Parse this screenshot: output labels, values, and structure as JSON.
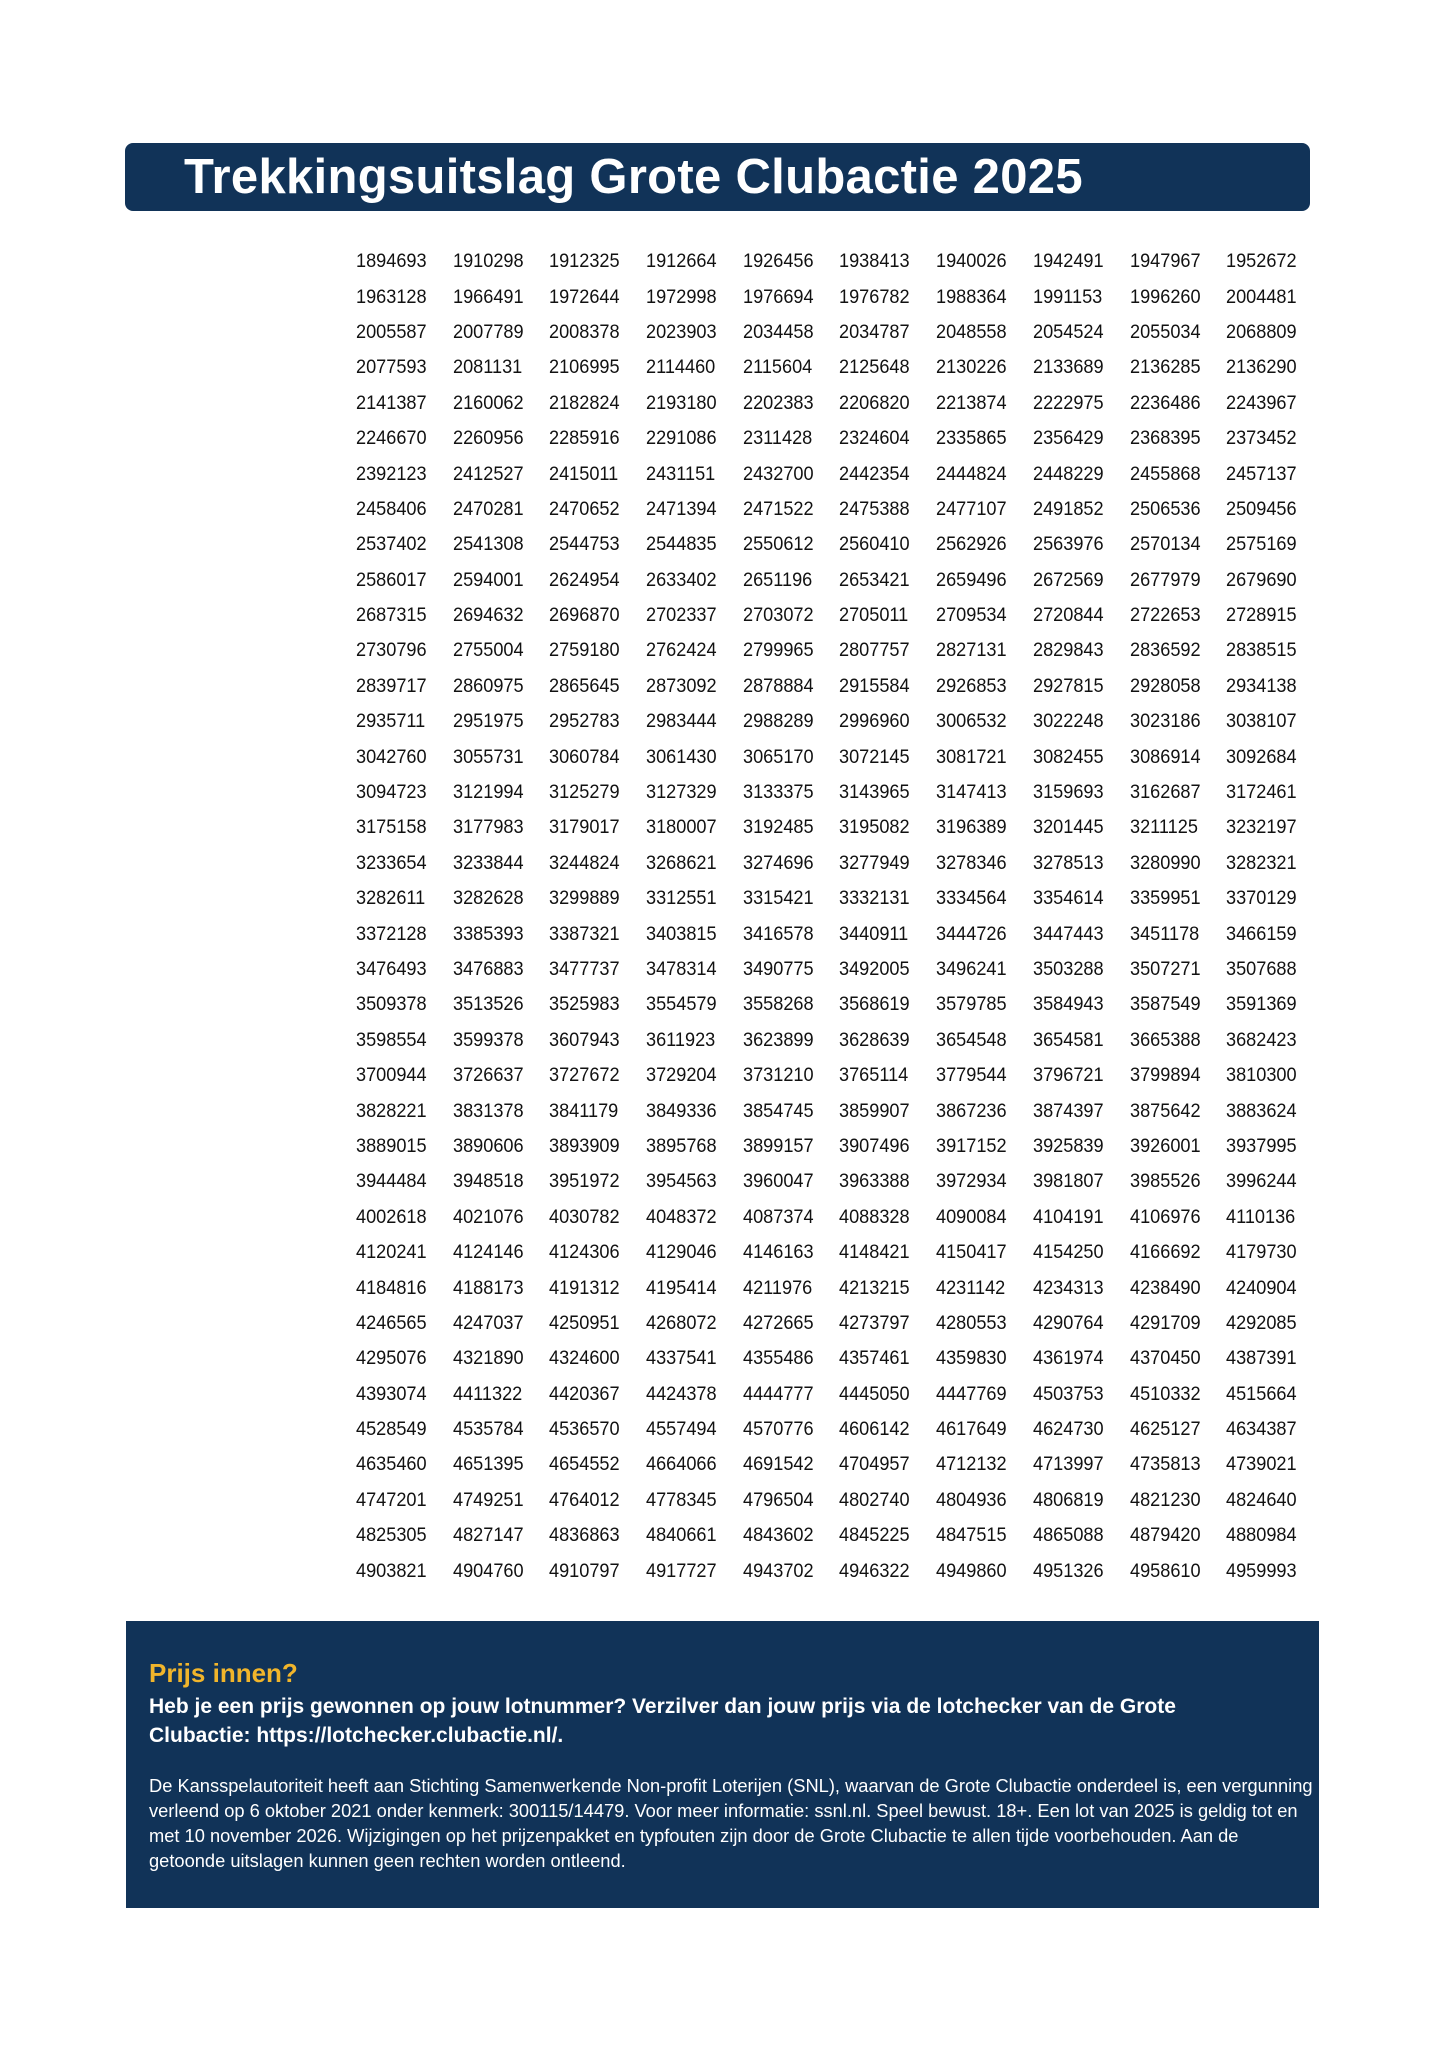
{
  "header": {
    "title": "Trekkingsuitslag Grote Clubactie 2025"
  },
  "colors": {
    "navy": "#113358",
    "accent_yellow": "#f1b52b",
    "text": "#111111"
  },
  "numbers": [
    [
      "1894693",
      "1910298",
      "1912325",
      "1912664",
      "1926456",
      "1938413",
      "1940026",
      "1942491",
      "1947967",
      "1952672"
    ],
    [
      "1963128",
      "1966491",
      "1972644",
      "1972998",
      "1976694",
      "1976782",
      "1988364",
      "1991153",
      "1996260",
      "2004481"
    ],
    [
      "2005587",
      "2007789",
      "2008378",
      "2023903",
      "2034458",
      "2034787",
      "2048558",
      "2054524",
      "2055034",
      "2068809"
    ],
    [
      "2077593",
      "2081131",
      "2106995",
      "2114460",
      "2115604",
      "2125648",
      "2130226",
      "2133689",
      "2136285",
      "2136290"
    ],
    [
      "2141387",
      "2160062",
      "2182824",
      "2193180",
      "2202383",
      "2206820",
      "2213874",
      "2222975",
      "2236486",
      "2243967"
    ],
    [
      "2246670",
      "2260956",
      "2285916",
      "2291086",
      "2311428",
      "2324604",
      "2335865",
      "2356429",
      "2368395",
      "2373452"
    ],
    [
      "2392123",
      "2412527",
      "2415011",
      "2431151",
      "2432700",
      "2442354",
      "2444824",
      "2448229",
      "2455868",
      "2457137"
    ],
    [
      "2458406",
      "2470281",
      "2470652",
      "2471394",
      "2471522",
      "2475388",
      "2477107",
      "2491852",
      "2506536",
      "2509456"
    ],
    [
      "2537402",
      "2541308",
      "2544753",
      "2544835",
      "2550612",
      "2560410",
      "2562926",
      "2563976",
      "2570134",
      "2575169"
    ],
    [
      "2586017",
      "2594001",
      "2624954",
      "2633402",
      "2651196",
      "2653421",
      "2659496",
      "2672569",
      "2677979",
      "2679690"
    ],
    [
      "2687315",
      "2694632",
      "2696870",
      "2702337",
      "2703072",
      "2705011",
      "2709534",
      "2720844",
      "2722653",
      "2728915"
    ],
    [
      "2730796",
      "2755004",
      "2759180",
      "2762424",
      "2799965",
      "2807757",
      "2827131",
      "2829843",
      "2836592",
      "2838515"
    ],
    [
      "2839717",
      "2860975",
      "2865645",
      "2873092",
      "2878884",
      "2915584",
      "2926853",
      "2927815",
      "2928058",
      "2934138"
    ],
    [
      "2935711",
      "2951975",
      "2952783",
      "2983444",
      "2988289",
      "2996960",
      "3006532",
      "3022248",
      "3023186",
      "3038107"
    ],
    [
      "3042760",
      "3055731",
      "3060784",
      "3061430",
      "3065170",
      "3072145",
      "3081721",
      "3082455",
      "3086914",
      "3092684"
    ],
    [
      "3094723",
      "3121994",
      "3125279",
      "3127329",
      "3133375",
      "3143965",
      "3147413",
      "3159693",
      "3162687",
      "3172461"
    ],
    [
      "3175158",
      "3177983",
      "3179017",
      "3180007",
      "3192485",
      "3195082",
      "3196389",
      "3201445",
      "3211125",
      "3232197"
    ],
    [
      "3233654",
      "3233844",
      "3244824",
      "3268621",
      "3274696",
      "3277949",
      "3278346",
      "3278513",
      "3280990",
      "3282321"
    ],
    [
      "3282611",
      "3282628",
      "3299889",
      "3312551",
      "3315421",
      "3332131",
      "3334564",
      "3354614",
      "3359951",
      "3370129"
    ],
    [
      "3372128",
      "3385393",
      "3387321",
      "3403815",
      "3416578",
      "3440911",
      "3444726",
      "3447443",
      "3451178",
      "3466159"
    ],
    [
      "3476493",
      "3476883",
      "3477737",
      "3478314",
      "3490775",
      "3492005",
      "3496241",
      "3503288",
      "3507271",
      "3507688"
    ],
    [
      "3509378",
      "3513526",
      "3525983",
      "3554579",
      "3558268",
      "3568619",
      "3579785",
      "3584943",
      "3587549",
      "3591369"
    ],
    [
      "3598554",
      "3599378",
      "3607943",
      "3611923",
      "3623899",
      "3628639",
      "3654548",
      "3654581",
      "3665388",
      "3682423"
    ],
    [
      "3700944",
      "3726637",
      "3727672",
      "3729204",
      "3731210",
      "3765114",
      "3779544",
      "3796721",
      "3799894",
      "3810300"
    ],
    [
      "3828221",
      "3831378",
      "3841179",
      "3849336",
      "3854745",
      "3859907",
      "3867236",
      "3874397",
      "3875642",
      "3883624"
    ],
    [
      "3889015",
      "3890606",
      "3893909",
      "3895768",
      "3899157",
      "3907496",
      "3917152",
      "3925839",
      "3926001",
      "3937995"
    ],
    [
      "3944484",
      "3948518",
      "3951972",
      "3954563",
      "3960047",
      "3963388",
      "3972934",
      "3981807",
      "3985526",
      "3996244"
    ],
    [
      "4002618",
      "4021076",
      "4030782",
      "4048372",
      "4087374",
      "4088328",
      "4090084",
      "4104191",
      "4106976",
      "4110136"
    ],
    [
      "4120241",
      "4124146",
      "4124306",
      "4129046",
      "4146163",
      "4148421",
      "4150417",
      "4154250",
      "4166692",
      "4179730"
    ],
    [
      "4184816",
      "4188173",
      "4191312",
      "4195414",
      "4211976",
      "4213215",
      "4231142",
      "4234313",
      "4238490",
      "4240904"
    ],
    [
      "4246565",
      "4247037",
      "4250951",
      "4268072",
      "4272665",
      "4273797",
      "4280553",
      "4290764",
      "4291709",
      "4292085"
    ],
    [
      "4295076",
      "4321890",
      "4324600",
      "4337541",
      "4355486",
      "4357461",
      "4359830",
      "4361974",
      "4370450",
      "4387391"
    ],
    [
      "4393074",
      "4411322",
      "4420367",
      "4424378",
      "4444777",
      "4445050",
      "4447769",
      "4503753",
      "4510332",
      "4515664"
    ],
    [
      "4528549",
      "4535784",
      "4536570",
      "4557494",
      "4570776",
      "4606142",
      "4617649",
      "4624730",
      "4625127",
      "4634387"
    ],
    [
      "4635460",
      "4651395",
      "4654552",
      "4664066",
      "4691542",
      "4704957",
      "4712132",
      "4713997",
      "4735813",
      "4739021"
    ],
    [
      "4747201",
      "4749251",
      "4764012",
      "4778345",
      "4796504",
      "4802740",
      "4804936",
      "4806819",
      "4821230",
      "4824640"
    ],
    [
      "4825305",
      "4827147",
      "4836863",
      "4840661",
      "4843602",
      "4845225",
      "4847515",
      "4865088",
      "4879420",
      "4880984"
    ],
    [
      "4903821",
      "4904760",
      "4910797",
      "4917727",
      "4943702",
      "4946322",
      "4949860",
      "4951326",
      "4958610",
      "4959993"
    ]
  ],
  "info": {
    "title": "Prijs innen?",
    "lead": "Heb je een prijs gewonnen op jouw lotnummer? Verzilver dan jouw prijs via de lotchecker van de Grote Clubactie: https://lotchecker.clubactie.nl/.",
    "legal": "De Kansspelautoriteit heeft aan Stichting Samenwerkende Non-profit Loterijen (SNL), waarvan de Grote Clubactie onderdeel is, een vergunning verleend op 6 oktober 2021 onder kenmerk: 300115/14479. Voor meer informatie: ssnl.nl. Speel bewust. 18+. Een lot van 2025 is geldig tot en met 10 november 2026. Wijzigingen op het prijzenpakket en typfouten zijn door de Grote Clubactie te allen tijde voorbehouden. Aan de getoonde uitslagen kunnen geen rechten worden ontleend."
  }
}
